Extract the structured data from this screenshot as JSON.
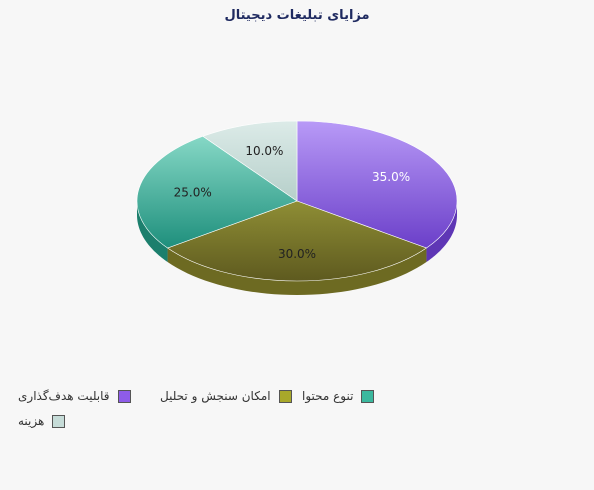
{
  "chart_data": {
    "type": "pie",
    "title": "مزایای تبلیغات دیجیتال",
    "categories": [
      "قابلیت هدف‌گذاری",
      "امکان سنجش و تحلیل",
      "تنوع محتوا",
      "هزینه"
    ],
    "values": [
      35,
      30,
      25,
      10
    ],
    "data_labels": [
      "35.0%",
      "30.0%",
      "25.0%",
      "10.0%"
    ],
    "colors": [
      "#8e5ce8",
      "#a8a82a",
      "#3bb89e",
      "#c6dcd8"
    ],
    "legend_position": "bottom-left"
  }
}
